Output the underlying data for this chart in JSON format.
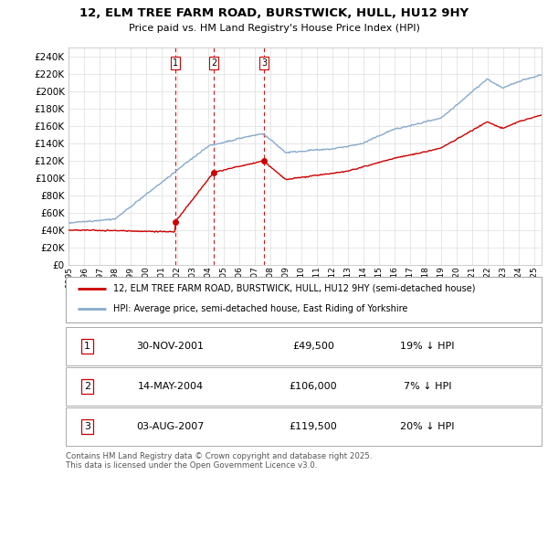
{
  "title": "12, ELM TREE FARM ROAD, BURSTWICK, HULL, HU12 9HY",
  "subtitle": "Price paid vs. HM Land Registry's House Price Index (HPI)",
  "ylim": [
    0,
    250000
  ],
  "yticks": [
    0,
    20000,
    40000,
    60000,
    80000,
    100000,
    120000,
    140000,
    160000,
    180000,
    200000,
    220000,
    240000
  ],
  "sale_dates": [
    "2001-11-30",
    "2004-05-14",
    "2007-08-03"
  ],
  "sale_prices": [
    49500,
    106000,
    119500
  ],
  "sale_labels": [
    "1",
    "2",
    "3"
  ],
  "sale_pct": [
    "19% ↓ HPI",
    "7% ↓ HPI",
    "20% ↓ HPI"
  ],
  "sale_date_labels": [
    "30-NOV-2001",
    "14-MAY-2004",
    "03-AUG-2007"
  ],
  "sale_price_labels": [
    "£49,500",
    "£106,000",
    "£119,500"
  ],
  "legend_line1": "12, ELM TREE FARM ROAD, BURSTWICK, HULL, HU12 9HY (semi-detached house)",
  "legend_line2": "HPI: Average price, semi-detached house, East Riding of Yorkshire",
  "footer": "Contains HM Land Registry data © Crown copyright and database right 2025.\nThis data is licensed under the Open Government Licence v3.0.",
  "line_color_red": "#cc0000",
  "line_color_blue": "#88aacc",
  "background_color": "#ffffff",
  "grid_color": "#dddddd",
  "sale_marker_color": "#cc0000",
  "dashed_line_color": "#cc0000",
  "xmin": 1995,
  "xmax": 2025.5
}
